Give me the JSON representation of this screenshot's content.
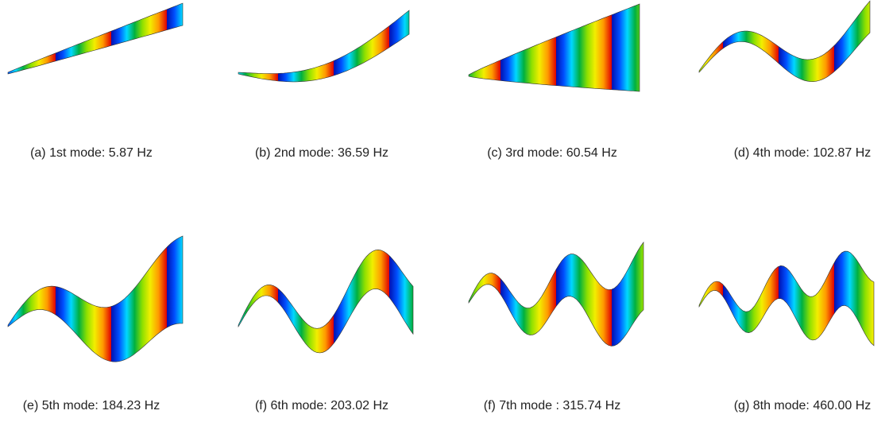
{
  "panels": [
    {
      "caption": "(a) 1st mode: 5.87 Hz"
    },
    {
      "caption": "(b) 2nd mode: 36.59 Hz"
    },
    {
      "caption": "(c) 3rd mode: 60.54 Hz"
    },
    {
      "caption": "(d) 4th mode: 102.87 Hz"
    },
    {
      "caption": "(e) 5th mode: 184.23 Hz"
    },
    {
      "caption": "(f) 6th mode: 203.02 Hz"
    },
    {
      "caption": "(f) 7th mode : 315.74 Hz"
    },
    {
      "caption": "(g) 8th mode: 460.00 Hz"
    }
  ]
}
